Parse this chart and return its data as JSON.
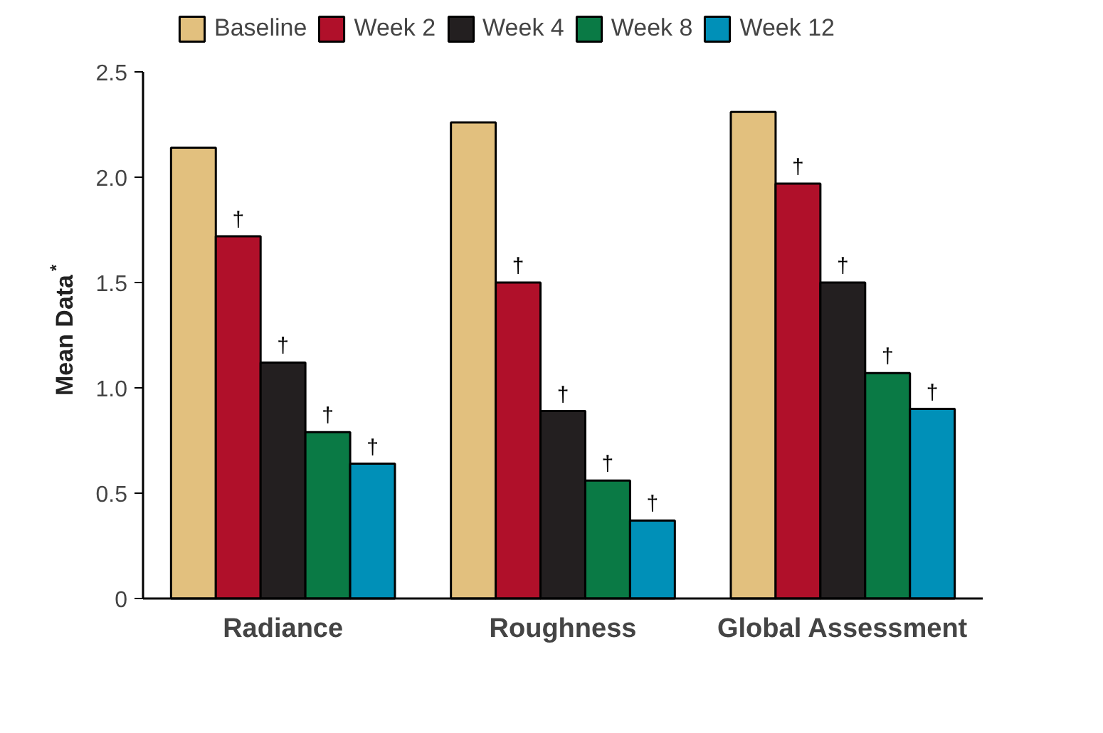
{
  "chart_data": {
    "type": "bar",
    "ylabel": "Mean Data$^{*}$",
    "categories": [
      "Radiance",
      "Roughness",
      "Global Assessment"
    ],
    "series": [
      {
        "name": "Baseline",
        "color": "#e2c07e",
        "values": [
          2.14,
          2.26,
          2.31
        ]
      },
      {
        "name": "Week 2",
        "color": "#b0102a",
        "values": [
          1.72,
          1.5,
          1.97
        ],
        "value_labels": [
          "†",
          "†",
          "†"
        ]
      },
      {
        "name": "Week 4",
        "color": "#231f20",
        "values": [
          1.12,
          0.89,
          1.5
        ],
        "value_labels": [
          "†",
          "†",
          "†"
        ]
      },
      {
        "name": "Week 8",
        "color": "#0a7a45",
        "values": [
          0.79,
          0.56,
          1.07
        ],
        "value_labels": [
          "†",
          "†",
          "†"
        ]
      },
      {
        "name": "Week 12",
        "color": "#0090b8",
        "values": [
          0.64,
          0.37,
          0.9
        ],
        "value_labels": [
          "†",
          "†",
          "†"
        ]
      }
    ],
    "ylim": [
      0,
      2.5
    ],
    "yticks": [
      0,
      0.5,
      {
        "value": 1,
        "label": "1.0"
      },
      1.5,
      {
        "value": 2,
        "label": "2.0"
      },
      2.5
    ],
    "grid": false,
    "legend": "top"
  }
}
